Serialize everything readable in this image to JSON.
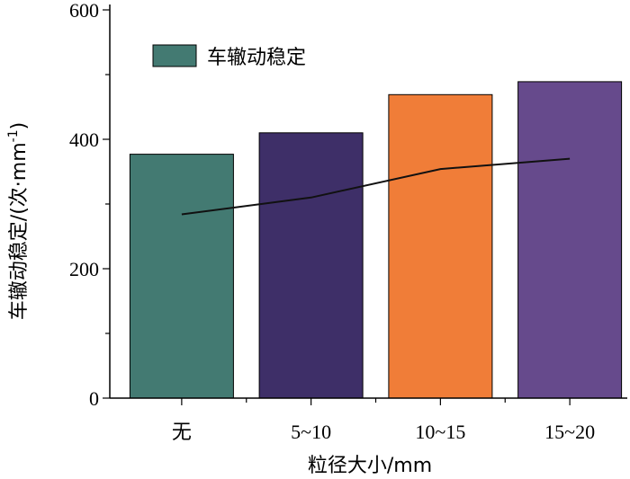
{
  "chart_data": {
    "type": "bar",
    "categories": [
      "无",
      "5~10",
      "10~15",
      "15~20"
    ],
    "series": [
      {
        "name": "车辙动稳定",
        "type": "bar",
        "values": [
          377,
          410,
          469,
          489
        ],
        "colors": [
          "#437a72",
          "#3e2f68",
          "#f07d38",
          "#664a8c"
        ]
      },
      {
        "name": "",
        "type": "line",
        "values": [
          284,
          310,
          354,
          370
        ],
        "color": "#111111"
      }
    ],
    "xlabel": "粒径大小/mm",
    "ylabel_main": "车辙动稳定/(次·mm",
    "ylabel_sup": "-1",
    "ylabel_end": ")",
    "yticks": [
      "0",
      "200",
      "400",
      "600"
    ],
    "ylim": [
      0,
      600
    ],
    "legend": {
      "label": "车辙动稳定",
      "position": "top-left",
      "color": "#437a72"
    },
    "grid": false
  }
}
